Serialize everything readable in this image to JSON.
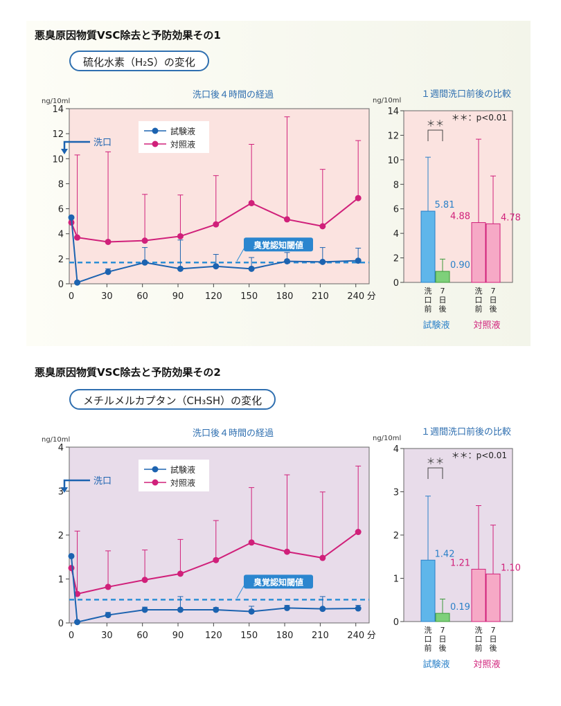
{
  "section1": {
    "heading": "悪臭原因物質VSC除去と予防効果その1",
    "pill": "硫化水素（H₂S）の変化"
  },
  "section2": {
    "heading": "悪臭原因物質VSC除去と予防効果その2",
    "pill": "メチルメルカプタン（CH₃SH）の変化"
  },
  "colors": {
    "test": "#1c63b0",
    "control": "#d0207a",
    "threshold": "#2c8ed6",
    "panel1_bg": "#fbe3e0",
    "panel2_bg": "#e8dcea",
    "test_bar": "#5fb6ea",
    "test_bar2": "#7ed07a",
    "control_bar": "#f6a9c6"
  },
  "chart_data": [
    {
      "type": "line",
      "title": "洗口後４時間の経過",
      "ylabel": "ng/10ml",
      "xunit": "分",
      "ylim": [
        0,
        14
      ],
      "yticks": [
        "0",
        "2",
        "4",
        "6",
        "8",
        "10",
        "12",
        "14"
      ],
      "x": [
        0,
        30,
        60,
        90,
        120,
        150,
        180,
        210,
        240
      ],
      "xticks": [
        "0",
        "30",
        "60",
        "90",
        "120",
        "150",
        "180",
        "210",
        "240"
      ],
      "wash_label": "洗口",
      "threshold_label": "臭覚認知閾値",
      "threshold_value": 1.7,
      "series": [
        {
          "name": "試験液",
          "x": [
            0,
            5,
            31,
            62,
            92,
            122,
            152,
            182,
            212,
            242
          ],
          "values": [
            5.3,
            0.1,
            0.95,
            1.7,
            1.2,
            1.4,
            1.2,
            1.8,
            1.75,
            1.85
          ],
          "errors": [
            null,
            null,
            0.25,
            1.2,
            2.3,
            0.95,
            0.9,
            0.7,
            1.15,
            1.0
          ]
        },
        {
          "name": "対照液",
          "x": [
            0,
            5,
            31,
            62,
            92,
            122,
            152,
            182,
            212,
            242
          ],
          "values": [
            4.9,
            3.7,
            3.35,
            3.45,
            3.8,
            4.75,
            6.45,
            5.15,
            4.6,
            6.85
          ],
          "errors": [
            null,
            6.6,
            7.2,
            3.7,
            3.3,
            3.9,
            4.7,
            8.2,
            4.55,
            4.6
          ]
        }
      ]
    },
    {
      "type": "bar",
      "title": "１週間洗口前後の比較",
      "ylabel": "ng/10ml",
      "ylim": [
        0,
        14
      ],
      "yticks": [
        "0",
        "2",
        "4",
        "6",
        "8",
        "10",
        "12",
        "14"
      ],
      "significance": "＊＊",
      "sig_note": "＊＊：p<0.01",
      "categories": [
        "洗口前",
        "7日後"
      ],
      "cat_labels": [
        [
          "洗",
          "口",
          "前"
        ],
        [
          "7",
          "日",
          "後"
        ]
      ],
      "groups": [
        "試験液",
        "対照液"
      ],
      "values": [
        [
          5.81,
          0.9
        ],
        [
          4.88,
          4.78
        ]
      ],
      "value_labels": [
        [
          "5.81",
          "0.90"
        ],
        [
          "4.88",
          "4.78"
        ]
      ],
      "errors": [
        [
          4.4,
          1.0
        ],
        [
          6.8,
          3.9
        ]
      ]
    },
    {
      "type": "line",
      "title": "洗口後４時間の経過",
      "ylabel": "ng/10ml",
      "xunit": "分",
      "ylim": [
        0,
        4
      ],
      "yticks": [
        "0",
        "1",
        "2",
        "3",
        "4"
      ],
      "x": [
        0,
        30,
        60,
        90,
        120,
        150,
        180,
        210,
        240
      ],
      "xticks": [
        "0",
        "30",
        "60",
        "90",
        "120",
        "150",
        "180",
        "210",
        "240"
      ],
      "wash_label": "洗口",
      "threshold_label": "臭覚認知閾値",
      "threshold_value": 0.53,
      "series": [
        {
          "name": "試験液",
          "x": [
            0,
            5,
            31,
            62,
            92,
            122,
            152,
            182,
            212,
            242
          ],
          "values": [
            1.52,
            0.02,
            0.18,
            0.3,
            0.3,
            0.3,
            0.26,
            0.34,
            0.32,
            0.33
          ],
          "errors": [
            null,
            null,
            0.06,
            0.06,
            0.3,
            0.05,
            0.12,
            0.06,
            0.28,
            0.07
          ]
        },
        {
          "name": "対照液",
          "x": [
            0,
            5,
            31,
            62,
            92,
            122,
            152,
            182,
            212,
            242
          ],
          "values": [
            1.25,
            0.66,
            0.82,
            0.98,
            1.12,
            1.43,
            1.83,
            1.62,
            1.48,
            2.07
          ],
          "errors": [
            null,
            1.43,
            0.82,
            0.68,
            0.78,
            0.9,
            1.25,
            1.75,
            1.5,
            1.5
          ]
        }
      ]
    },
    {
      "type": "bar",
      "title": "１週間洗口前後の比較",
      "ylabel": "ng/10ml",
      "ylim": [
        0,
        4
      ],
      "yticks": [
        "0",
        "1",
        "2",
        "3",
        "4"
      ],
      "significance": "＊＊",
      "sig_note": "＊＊：p<0.01",
      "categories": [
        "洗口前",
        "7日後"
      ],
      "cat_labels": [
        [
          "洗",
          "口",
          "前"
        ],
        [
          "7",
          "日",
          "後"
        ]
      ],
      "groups": [
        "試験液",
        "対照液"
      ],
      "values": [
        [
          1.42,
          0.19
        ],
        [
          1.21,
          1.1
        ]
      ],
      "value_labels": [
        [
          "1.42",
          "0.19"
        ],
        [
          "1.21",
          "1.10"
        ]
      ],
      "errors": [
        [
          1.48,
          0.33
        ],
        [
          1.47,
          1.13
        ]
      ]
    }
  ]
}
